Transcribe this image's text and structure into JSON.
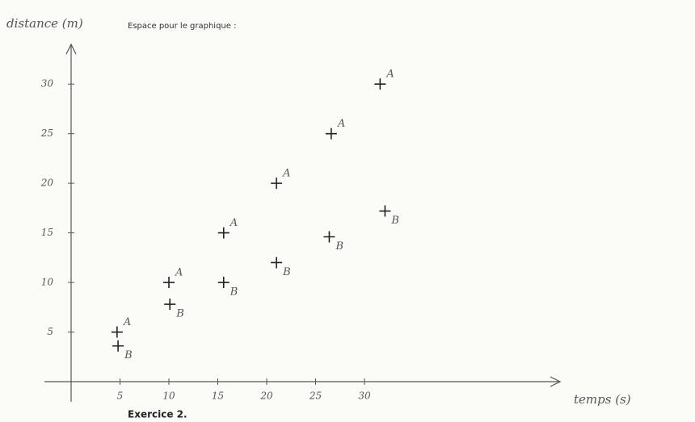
{
  "chart_data": {
    "type": "scatter",
    "title": "Espace pour le graphique :",
    "subtitle": "Exercice 2.",
    "y_label": "distance (m)",
    "x_label": "temps (s)",
    "xlim": [
      0,
      50
    ],
    "ylim": [
      0,
      34
    ],
    "xticks": [
      5,
      10,
      15,
      20,
      25,
      30
    ],
    "yticks": [
      5,
      10,
      15,
      20,
      25,
      30
    ],
    "series": [
      {
        "name": "A",
        "color": "#2e8b6e",
        "x": [
          4.7,
          10,
          15.6,
          21,
          26.6,
          31.6
        ],
        "values": [
          5,
          10,
          15,
          20,
          25,
          30
        ]
      },
      {
        "name": "B",
        "color": "#222222",
        "x": [
          4.8,
          10.1,
          15.6,
          21,
          26.4,
          32.1
        ],
        "values": [
          3.6,
          7.8,
          10,
          12,
          14.6,
          17.2
        ]
      }
    ]
  }
}
